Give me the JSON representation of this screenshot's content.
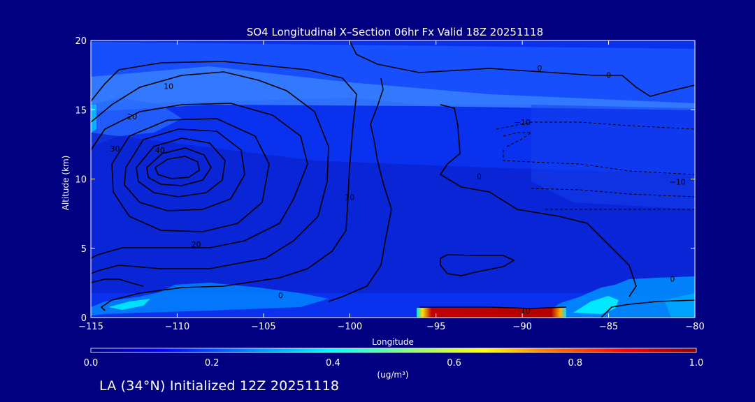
{
  "colors": {
    "background": "#000080",
    "plot_fill": "#0a28e6",
    "contour": "#000000",
    "hotspot": "#b40000",
    "hotspot_edge": "#ffd000",
    "cyan": "#00c8ff"
  },
  "chart_data": {
    "type": "heatmap",
    "title": "SO4 Longitudinal X–Section 06hr  Fx Valid 18Z 20251118",
    "xlabel": "Longitude",
    "ylabel": "Altitude (km)",
    "xlim": [
      -115,
      -80
    ],
    "ylim": [
      0,
      20
    ],
    "x_ticks": [
      -115,
      -110,
      -105,
      -100,
      -95,
      -90,
      -85,
      -80
    ],
    "x_tick_labels": [
      "−115",
      "−110",
      "−105",
      "−100",
      "−95",
      "−90",
      "−85",
      "−80"
    ],
    "y_ticks": [
      0,
      5,
      10,
      15,
      20
    ],
    "y_tick_labels": [
      "0",
      "5",
      "10",
      "15",
      "20"
    ],
    "colorbar": {
      "min": 0.0,
      "max": 1.0,
      "ticks": [
        0.0,
        0.2,
        0.4,
        0.6,
        0.8,
        1.0
      ],
      "tick_labels": [
        "0.0",
        "0.2",
        "0.4",
        "0.6",
        "0.8",
        "1.0"
      ],
      "unit_label": "(ug/m³)",
      "colors": [
        "#000080",
        "#0000ff",
        "#0096ff",
        "#00ffff",
        "#a0ff60",
        "#ffff00",
        "#ff8000",
        "#ff0000",
        "#800000"
      ]
    },
    "contour_labels": [
      {
        "text": "10",
        "lon": -110.5,
        "alt": 16.5
      },
      {
        "text": "20",
        "lon": -112.6,
        "alt": 14.3
      },
      {
        "text": "30",
        "lon": -113.6,
        "alt": 12.0
      },
      {
        "text": "40",
        "lon": -111.0,
        "alt": 11.9
      },
      {
        "text": "20",
        "lon": -108.9,
        "alt": 5.1
      },
      {
        "text": "10",
        "lon": -100.0,
        "alt": 8.5
      },
      {
        "text": "0",
        "lon": -104.0,
        "alt": 1.4
      },
      {
        "text": "0",
        "lon": -89.0,
        "alt": 17.8
      },
      {
        "text": "0",
        "lon": -85.0,
        "alt": 17.3
      },
      {
        "text": "0",
        "lon": -92.5,
        "alt": 10.0
      },
      {
        "text": "−10",
        "lon": -90.0,
        "alt": 13.9
      },
      {
        "text": "−10",
        "lon": -81.0,
        "alt": 9.6
      },
      {
        "text": "0",
        "lon": -81.3,
        "alt": 2.6
      },
      {
        "text": "−10",
        "lon": -90.0,
        "alt": 0.3
      }
    ],
    "fields": [
      {
        "name": "SO4 concentration",
        "unit": "ug/m3",
        "encoding": "fill color"
      },
      {
        "name": "contour field",
        "encoding": "black contour lines, dashed where negative"
      }
    ]
  },
  "footer": {
    "caption": "LA (34°N) Initialized 12Z 20251118"
  }
}
